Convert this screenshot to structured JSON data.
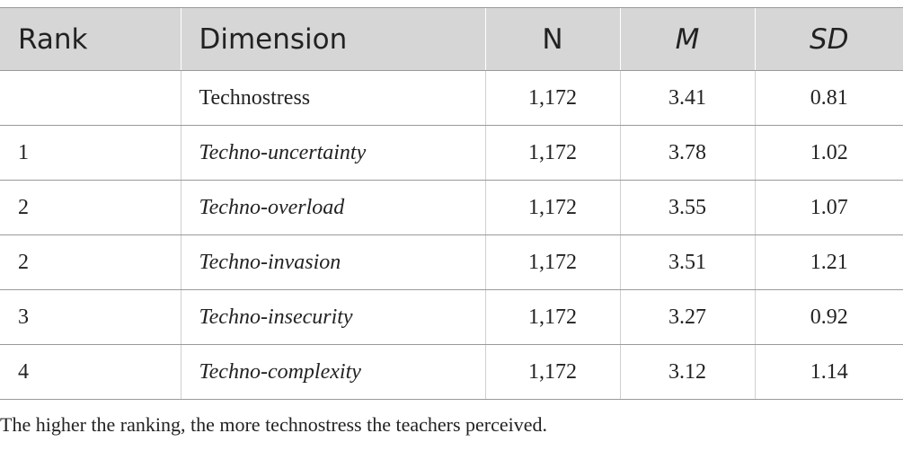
{
  "table": {
    "header": [
      "Rank",
      "Dimension",
      "N",
      "M",
      "SD"
    ],
    "rows": [
      [
        null,
        "Technostress",
        "1,172",
        "3.41",
        "0.81"
      ],
      [
        "1",
        "Techno-uncertainty",
        "1,172",
        "3.78",
        "1.02"
      ],
      [
        "2",
        "Techno-overload",
        "1,172",
        "3.55",
        "1.07"
      ],
      [
        "2",
        "Techno-invasion",
        "1,172",
        "3.51",
        "1.21"
      ],
      [
        "3",
        "Techno-insecurity",
        "1,172",
        "3.27",
        "0.92"
      ],
      [
        "4",
        "Techno-complexity",
        "1,172",
        "3.12",
        "1.14"
      ]
    ],
    "note": "The higher the ranking, the more technostress the teachers perceived."
  }
}
